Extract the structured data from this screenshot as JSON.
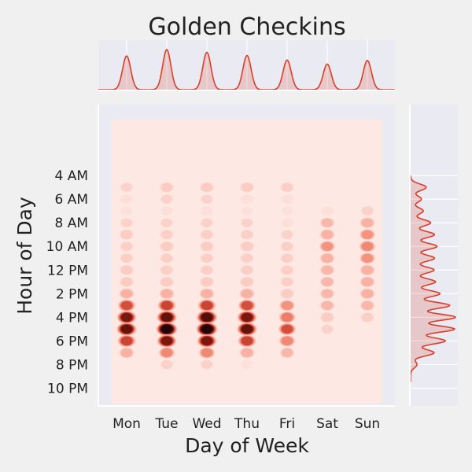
{
  "chart_data": {
    "type": "heatmap",
    "title": "Golden Checkins",
    "xlabel": "Day of Week",
    "ylabel": "Hour of Day",
    "categories": [
      "Mon",
      "Tue",
      "Wed",
      "Thu",
      "Fri",
      "Sat",
      "Sun"
    ],
    "y_ticks": [
      {
        "hour": 4,
        "label": "4 AM"
      },
      {
        "hour": 6,
        "label": "6 AM"
      },
      {
        "hour": 8,
        "label": "8 AM"
      },
      {
        "hour": 10,
        "label": "10 AM"
      },
      {
        "hour": 12,
        "label": "12 PM"
      },
      {
        "hour": 14,
        "label": "2 PM"
      },
      {
        "hour": 16,
        "label": "4 PM"
      },
      {
        "hour": 18,
        "label": "6 PM"
      },
      {
        "hour": 20,
        "label": "8 PM"
      },
      {
        "hour": 22,
        "label": "10 PM"
      }
    ],
    "hours": [
      5,
      6,
      7,
      8,
      9,
      10,
      11,
      12,
      13,
      14,
      15,
      16,
      17,
      18,
      19,
      20
    ],
    "ylim": [
      23.5,
      -2
    ],
    "density": [
      [
        0.25,
        0.2,
        0.15,
        0.25,
        0.35,
        0.3,
        0.3,
        0.35,
        0.35,
        0.45,
        0.65,
        0.8,
        0.85,
        0.7,
        0.45,
        0
      ],
      [
        0.35,
        0.25,
        0.2,
        0.25,
        0.3,
        0.35,
        0.3,
        0.3,
        0.35,
        0.45,
        0.7,
        0.85,
        0.95,
        0.8,
        0.55,
        0.25
      ],
      [
        0.35,
        0.25,
        0.2,
        0.25,
        0.3,
        0.35,
        0.3,
        0.3,
        0.35,
        0.45,
        0.7,
        0.9,
        0.95,
        0.8,
        0.55,
        0.25
      ],
      [
        0.35,
        0.2,
        0.15,
        0.25,
        0.3,
        0.35,
        0.3,
        0.3,
        0.35,
        0.45,
        0.65,
        0.8,
        0.85,
        0.7,
        0.45,
        0.15
      ],
      [
        0.3,
        0.2,
        0.15,
        0.2,
        0.25,
        0.3,
        0.3,
        0.3,
        0.3,
        0.35,
        0.5,
        0.6,
        0.65,
        0.55,
        0.4,
        0
      ],
      [
        0,
        0,
        0.2,
        0.4,
        0.45,
        0.5,
        0.45,
        0.4,
        0.4,
        0.4,
        0.4,
        0.35,
        0.25,
        0,
        0,
        0
      ],
      [
        0,
        0,
        0.25,
        0.45,
        0.5,
        0.55,
        0.5,
        0.45,
        0.45,
        0.45,
        0.4,
        0.3,
        0,
        0,
        0,
        0
      ]
    ],
    "top_marginal_peaks": [
      0.74,
      0.88,
      0.82,
      0.75,
      0.65,
      0.56,
      0.64
    ],
    "grid": true,
    "colors": {
      "panel_bg": "#eaeaf2",
      "kde_fill": "#fde8e3",
      "accent": "#d6402b",
      "grid": "#ffffff"
    }
  }
}
